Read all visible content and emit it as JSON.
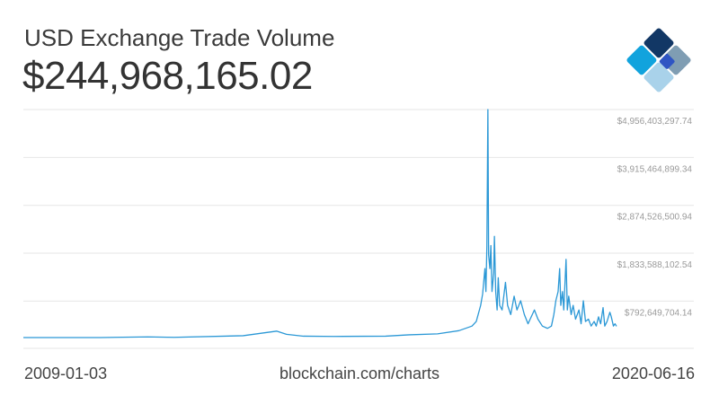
{
  "header": {
    "title": "USD Exchange Trade Volume",
    "current_value": "$244,968,165.02"
  },
  "footer": {
    "start_date": "2009-01-03",
    "source": "blockchain.com/charts",
    "end_date": "2020-06-16"
  },
  "brand": {
    "logo": "blockchain-diamond-logo",
    "colors": {
      "dark_navy": "#123765",
      "grey_blue": "#7f9db3",
      "blue": "#2f55c3",
      "cyan": "#11a3dd",
      "light_blue": "#a9d2ea"
    }
  },
  "chart_data": {
    "type": "line",
    "title": "USD Exchange Trade Volume",
    "xlabel": "",
    "ylabel": "",
    "xlim": [
      "2009-01-03",
      "2020-06-16"
    ],
    "ylim": [
      0,
      4956403297.74
    ],
    "grid": true,
    "legend": "none",
    "line_color": "#2b98d6",
    "y_ticks": [
      {
        "value": 4956403297.74,
        "label": "$4,956,403,297.74"
      },
      {
        "value": 3915464899.34,
        "label": "$3,915,464,899.34"
      },
      {
        "value": 2874526500.94,
        "label": "$2,874,526,500.94"
      },
      {
        "value": 1833588102.54,
        "label": "$1,833,588,102.54"
      },
      {
        "value": 792649704.14,
        "label": "$792,649,704.14"
      }
    ],
    "series": [
      {
        "values": [
          [
            "2009-01-03",
            0
          ],
          [
            "2010-07-01",
            0
          ],
          [
            "2011-06-01",
            15000000
          ],
          [
            "2011-12-01",
            5000000
          ],
          [
            "2013-04-01",
            40000000
          ],
          [
            "2013-11-25",
            140000000
          ],
          [
            "2014-02-01",
            70000000
          ],
          [
            "2014-06-01",
            30000000
          ],
          [
            "2015-01-01",
            25000000
          ],
          [
            "2016-01-01",
            30000000
          ],
          [
            "2016-06-15",
            60000000
          ],
          [
            "2017-01-01",
            80000000
          ],
          [
            "2017-06-01",
            150000000
          ],
          [
            "2017-09-01",
            250000000
          ],
          [
            "2017-10-01",
            350000000
          ],
          [
            "2017-11-01",
            700000000
          ],
          [
            "2017-11-15",
            950000000
          ],
          [
            "2017-12-01",
            1500000000
          ],
          [
            "2017-12-08",
            1000000000
          ],
          [
            "2017-12-15",
            2000000000
          ],
          [
            "2017-12-22",
            4956403297.74
          ],
          [
            "2017-12-27",
            1800000000
          ],
          [
            "2018-01-05",
            1500000000
          ],
          [
            "2018-01-12",
            2000000000
          ],
          [
            "2018-01-20",
            1000000000
          ],
          [
            "2018-02-01",
            1400000000
          ],
          [
            "2018-02-06",
            2200000000
          ],
          [
            "2018-02-15",
            1000000000
          ],
          [
            "2018-02-25",
            600000000
          ],
          [
            "2018-03-05",
            1300000000
          ],
          [
            "2018-03-15",
            700000000
          ],
          [
            "2018-04-01",
            600000000
          ],
          [
            "2018-04-25",
            1200000000
          ],
          [
            "2018-05-10",
            700000000
          ],
          [
            "2018-06-01",
            500000000
          ],
          [
            "2018-06-25",
            900000000
          ],
          [
            "2018-07-15",
            600000000
          ],
          [
            "2018-08-10",
            800000000
          ],
          [
            "2018-09-05",
            500000000
          ],
          [
            "2018-10-01",
            300000000
          ],
          [
            "2018-11-15",
            600000000
          ],
          [
            "2018-12-10",
            400000000
          ],
          [
            "2019-01-10",
            250000000
          ],
          [
            "2019-02-15",
            200000000
          ],
          [
            "2019-03-15",
            250000000
          ],
          [
            "2019-04-01",
            500000000
          ],
          [
            "2019-04-15",
            800000000
          ],
          [
            "2019-05-01",
            1000000000
          ],
          [
            "2019-05-12",
            1500000000
          ],
          [
            "2019-05-20",
            700000000
          ],
          [
            "2019-06-01",
            1000000000
          ],
          [
            "2019-06-10",
            600000000
          ],
          [
            "2019-06-26",
            1700000000
          ],
          [
            "2019-07-05",
            600000000
          ],
          [
            "2019-07-15",
            900000000
          ],
          [
            "2019-08-01",
            500000000
          ],
          [
            "2019-08-15",
            700000000
          ],
          [
            "2019-09-01",
            400000000
          ],
          [
            "2019-09-25",
            600000000
          ],
          [
            "2019-10-10",
            300000000
          ],
          [
            "2019-10-26",
            800000000
          ],
          [
            "2019-11-10",
            350000000
          ],
          [
            "2019-12-01",
            400000000
          ],
          [
            "2019-12-20",
            250000000
          ],
          [
            "2020-01-10",
            350000000
          ],
          [
            "2020-01-25",
            250000000
          ],
          [
            "2020-02-10",
            450000000
          ],
          [
            "2020-02-25",
            300000000
          ],
          [
            "2020-03-13",
            650000000
          ],
          [
            "2020-03-25",
            250000000
          ],
          [
            "2020-04-10",
            350000000
          ],
          [
            "2020-04-30",
            550000000
          ],
          [
            "2020-05-10",
            450000000
          ],
          [
            "2020-05-25",
            250000000
          ],
          [
            "2020-06-05",
            300000000
          ],
          [
            "2020-06-16",
            244968165.02
          ]
        ]
      }
    ]
  }
}
